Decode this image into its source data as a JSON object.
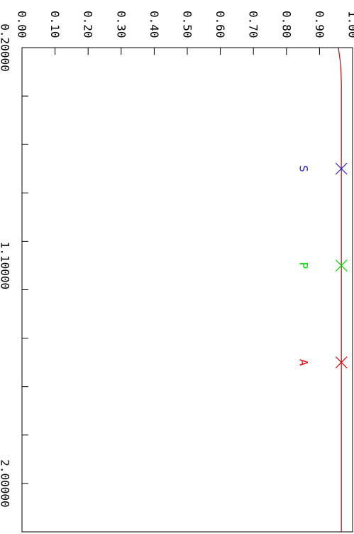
{
  "chart_data": {
    "type": "line",
    "xlim": [
      0.2,
      2.2
    ],
    "ylim": [
      0.0,
      1.0
    ],
    "x_ticks": [
      0.2,
      0.4,
      0.6,
      0.8,
      1.0,
      1.2,
      1.4,
      1.6,
      1.8,
      2.0,
      2.2
    ],
    "x_tick_labels": [
      {
        "value": 0.2,
        "label": "0.20000"
      },
      {
        "value": 1.1,
        "label": "1.10000"
      },
      {
        "value": 2.0,
        "label": "2.00000"
      }
    ],
    "y_ticks": [
      0.0,
      0.1,
      0.2,
      0.3,
      0.4,
      0.5,
      0.6,
      0.7,
      0.8,
      0.9,
      1.0
    ],
    "y_tick_labels": [
      "0.00",
      "0.10",
      "0.20",
      "0.30",
      "0.40",
      "0.50",
      "0.60",
      "0.70",
      "0.80",
      "0.90",
      "1.00"
    ],
    "series": [
      {
        "color": "#cc0000",
        "x": [
          0.2,
          0.25,
          0.3,
          0.35,
          0.4,
          0.5,
          0.6,
          0.8,
          1.0,
          1.2,
          1.4,
          1.6,
          1.8,
          2.0,
          2.2
        ],
        "y": [
          0.957,
          0.962,
          0.965,
          0.966,
          0.966,
          0.966,
          0.966,
          0.966,
          0.966,
          0.966,
          0.966,
          0.966,
          0.966,
          0.966,
          0.966
        ]
      }
    ],
    "markers": [
      {
        "label": "S",
        "x": 0.7,
        "y": 0.966,
        "color": "#2020cc"
      },
      {
        "label": "P",
        "x": 1.1,
        "y": 0.966,
        "color": "#00dd00"
      },
      {
        "label": "A",
        "x": 1.5,
        "y": 0.966,
        "color": "#ee0000"
      }
    ],
    "grid": false
  }
}
